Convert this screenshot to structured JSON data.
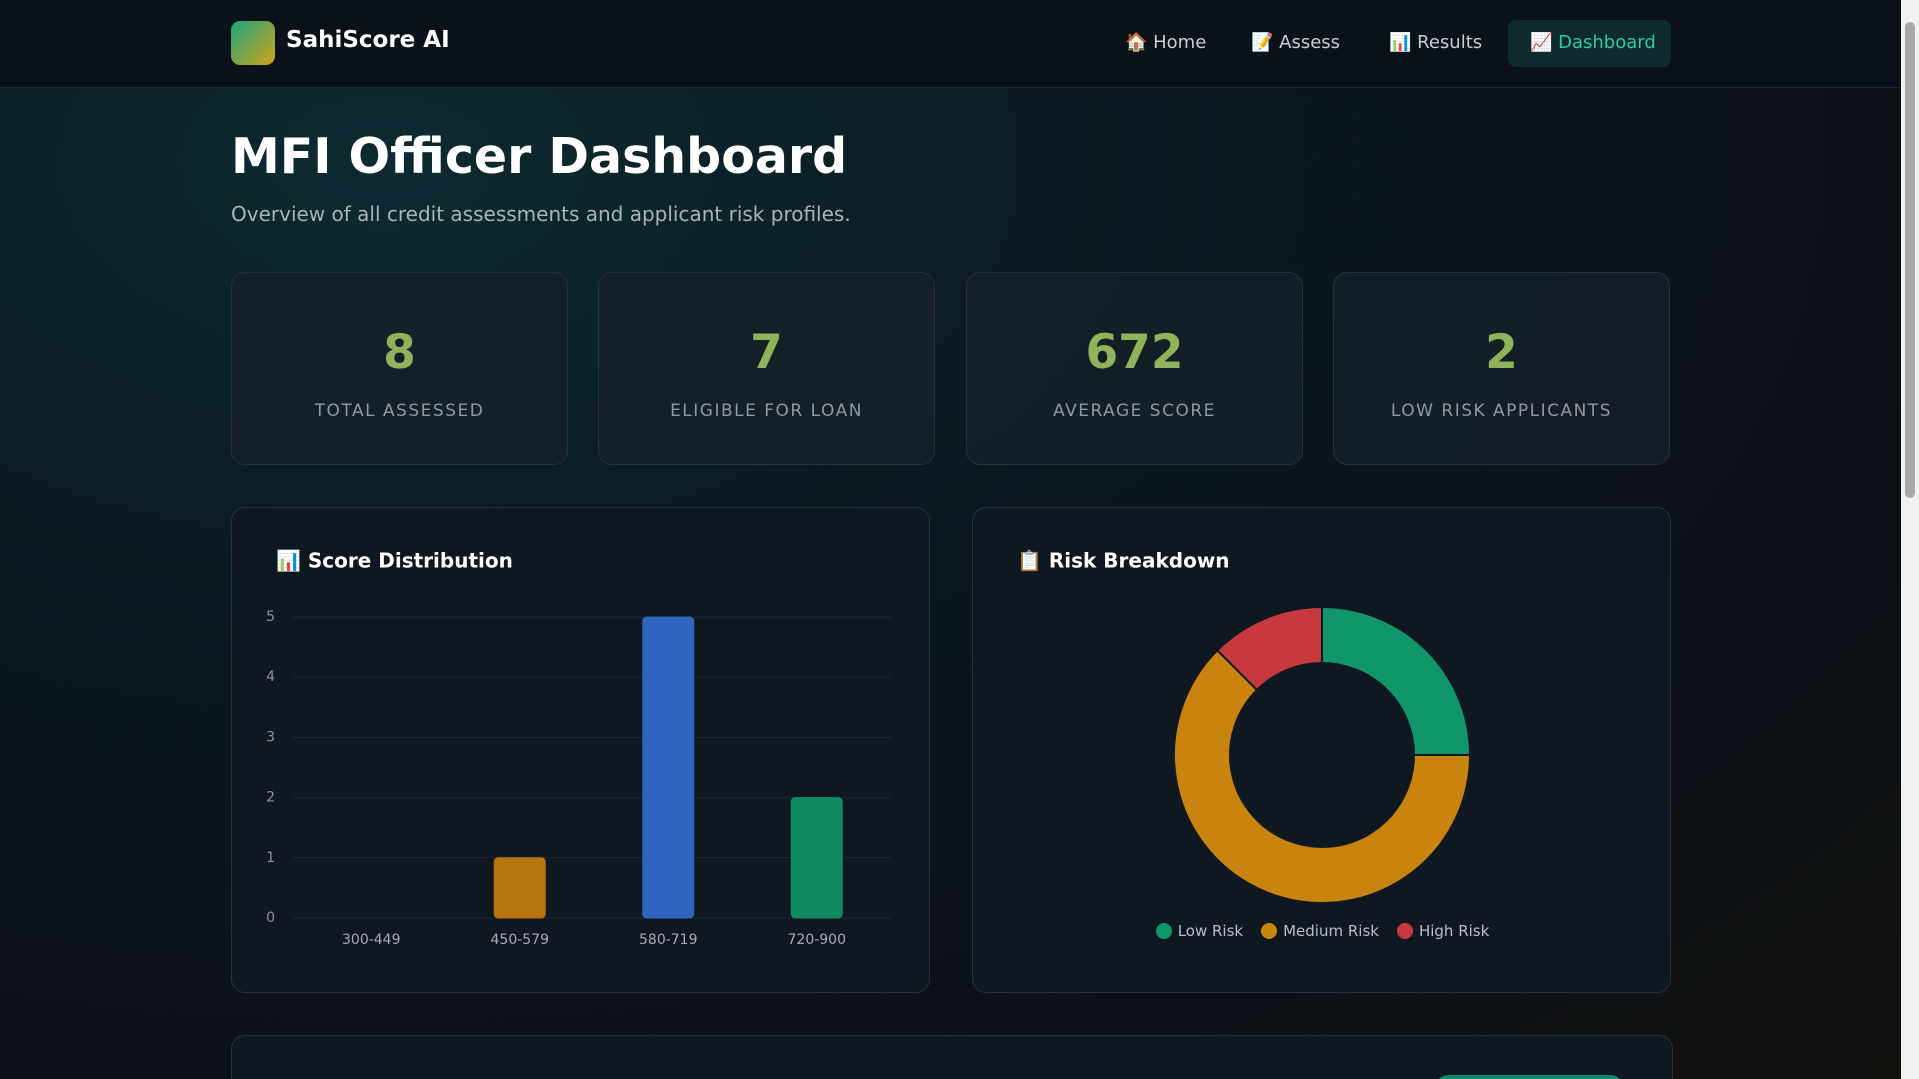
{
  "nav": {
    "brand": "SahiScore AI",
    "links": [
      "🏠 Home",
      "📝 Assess",
      "📊 Results",
      "📈 Dashboard"
    ]
  },
  "header": {
    "title": "MFI Officer Dashboard",
    "subtitle": "Overview of all credit assessments and applicant risk profiles."
  },
  "stats": [
    {
      "value": 8,
      "label": "TOTAL ASSESSED"
    },
    {
      "value": 7,
      "label": "ELIGIBLE FOR LOAN"
    },
    {
      "value": 672,
      "label": "AVERAGE SCORE"
    },
    {
      "value": 2,
      "label": "LOW RISK APPLICANTS"
    }
  ],
  "chart_data": [
    {
      "type": "bar",
      "title": "📊 Score Distribution",
      "categories": [
        "300-449",
        "450-579",
        "580-719",
        "720-900"
      ],
      "values": [
        0,
        1,
        5,
        2
      ],
      "colors": [
        "#c0392b",
        "#b7750f",
        "#2f64bf",
        "#108a63"
      ],
      "ylim": [
        0,
        5
      ],
      "yticks": [
        0,
        1,
        2,
        3,
        4,
        5
      ],
      "grid": true
    },
    {
      "type": "doughnut",
      "title": "📋 Risk Breakdown",
      "categories": [
        "Low Risk",
        "Medium Risk",
        "High Risk"
      ],
      "values": [
        2,
        5,
        1
      ],
      "colors": [
        "#11966b",
        "#c98410",
        "#c7393f"
      ],
      "legend": "bottom"
    }
  ]
}
